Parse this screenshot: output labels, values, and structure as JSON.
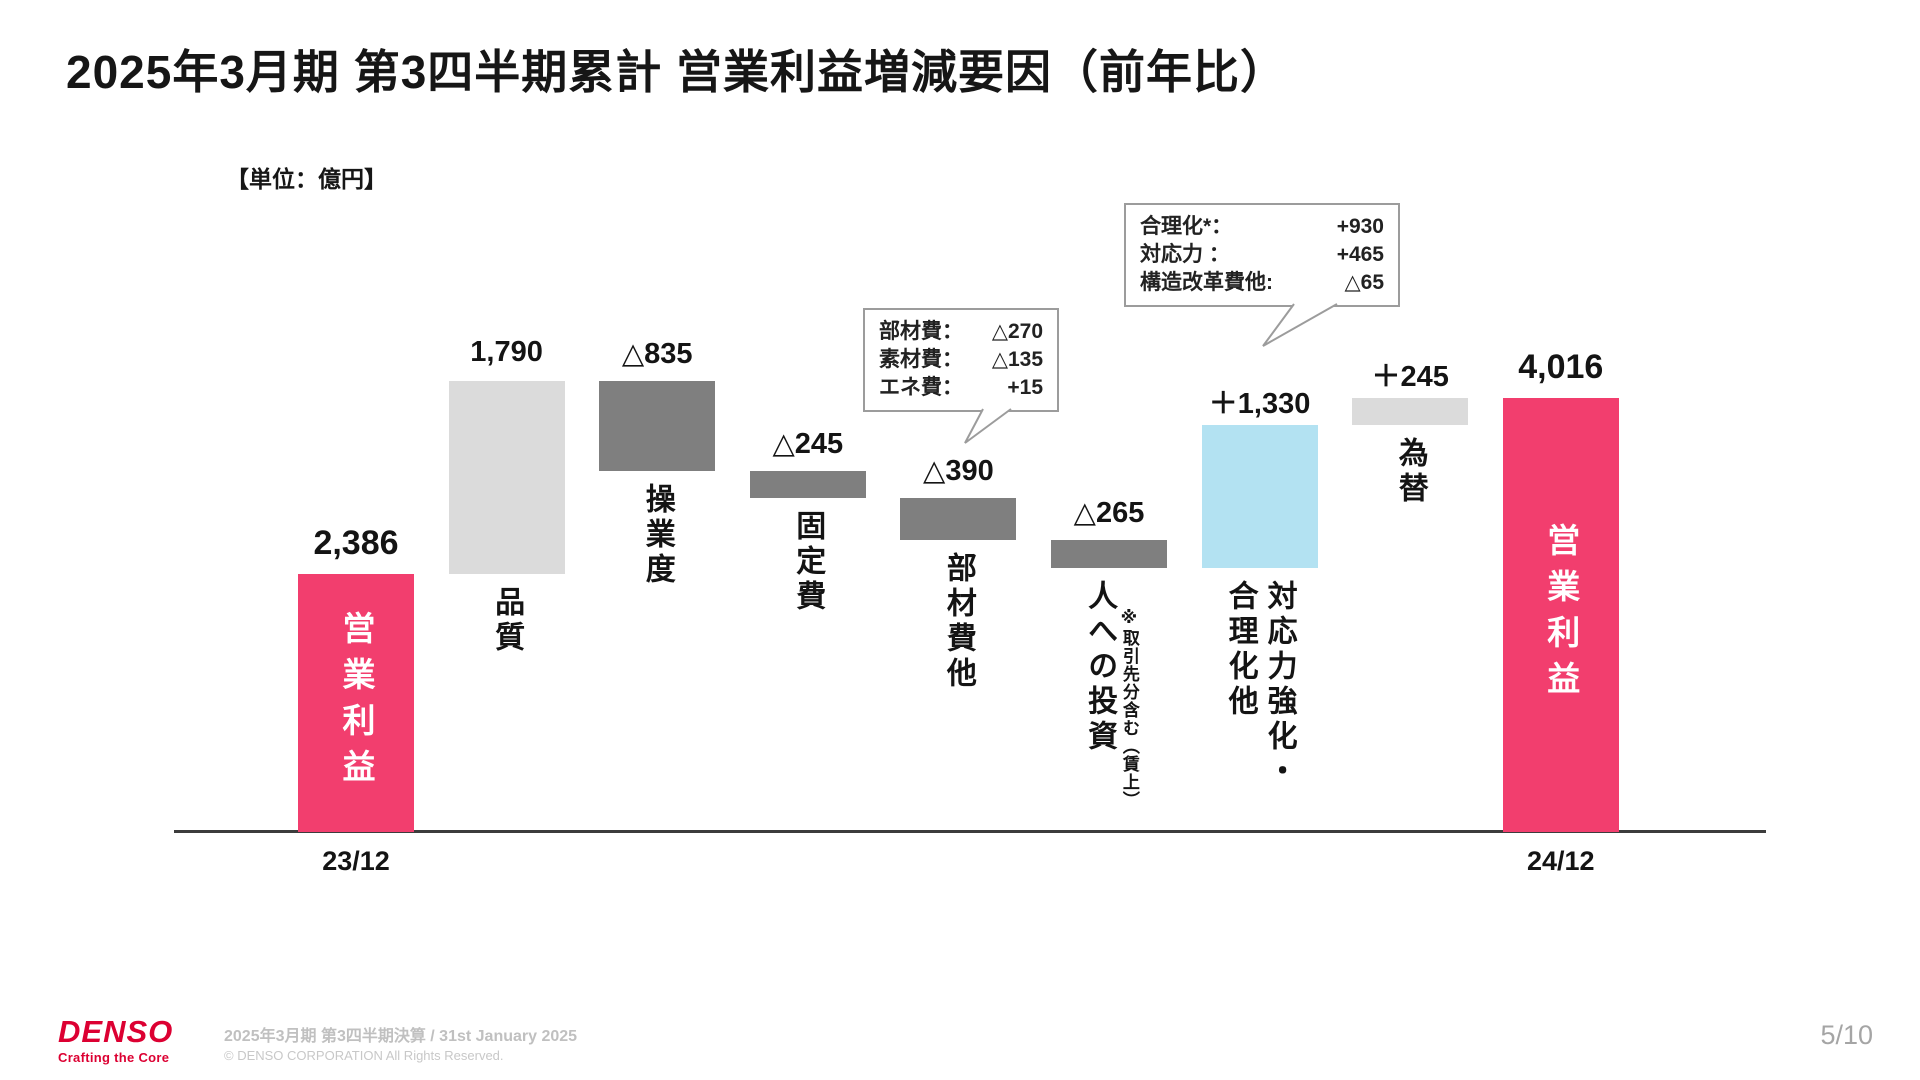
{
  "slide": {
    "title": "2025年3月期 第3四半期累計 営業利益増減要因（前年比）",
    "unit_label": "【単位：億円】"
  },
  "colors": {
    "accent_pink": "#F23E6E",
    "bar_light_gray": "#DBDBDB",
    "bar_dark_gray": "#7F7F7F",
    "bar_light_blue": "#B3E2F2",
    "axis": "#3C3C3C",
    "callout_border": "#9C9C9C"
  },
  "chart_data": {
    "type": "waterfall",
    "title": "営業利益増減要因（前年比）",
    "unit": "億円",
    "ylim": [
      0,
      4400
    ],
    "start_total": 2386,
    "end_total": 4016,
    "bars": [
      {
        "id": "operating-profit-start",
        "label_lines": [
          "営業利益"
        ],
        "value": 2386,
        "display": "2,386",
        "kind": "total",
        "color": "pink",
        "x_label": "23/12"
      },
      {
        "id": "quality",
        "label_lines": [
          "品質"
        ],
        "value": 1790,
        "display": "1,790",
        "kind": "delta",
        "color": "light_gray"
      },
      {
        "id": "utilization",
        "label_lines": [
          "操業度"
        ],
        "value": -835,
        "display": "△835",
        "kind": "delta",
        "color": "dark_gray"
      },
      {
        "id": "fixed-costs",
        "label_lines": [
          "固定費"
        ],
        "value": -245,
        "display": "△245",
        "kind": "delta",
        "color": "dark_gray"
      },
      {
        "id": "materials-cost",
        "label_lines": [
          "部材費他"
        ],
        "value": -390,
        "display": "△390",
        "kind": "delta",
        "color": "dark_gray"
      },
      {
        "id": "people-investment",
        "label_lines": [
          "人への投資"
        ],
        "note": "※取引先分含む（賃上）",
        "value": -265,
        "display": "△265",
        "kind": "delta",
        "color": "dark_gray"
      },
      {
        "id": "responsiveness-rationalization",
        "label_lines": [
          "対応力強化・",
          "合理化他"
        ],
        "value": 1330,
        "display": "＋1,330",
        "kind": "delta",
        "color": "light_blue"
      },
      {
        "id": "forex",
        "label_lines": [
          "為替"
        ],
        "value": 245,
        "display": "＋245",
        "kind": "delta",
        "color": "light_gray"
      },
      {
        "id": "operating-profit-end",
        "label_lines": [
          "営業利益"
        ],
        "value": 4016,
        "display": "4,016",
        "kind": "total",
        "color": "pink",
        "x_label": "24/12"
      }
    ],
    "callouts": [
      {
        "target": "部材費他",
        "rows": [
          {
            "label": "部材費：",
            "value": "△270"
          },
          {
            "label": "素材費：",
            "value": "△135"
          },
          {
            "label": "エネ費：",
            "value": "+15"
          }
        ]
      },
      {
        "target": "対応力強化・合理化他",
        "rows": [
          {
            "label": "合理化*：",
            "value": "+930"
          },
          {
            "label": "対応力 ：",
            "value": "+465"
          },
          {
            "label": "構造改革費他:",
            "value": "△65"
          }
        ]
      }
    ]
  },
  "footer": {
    "logo_text": "DENSO",
    "logo_tagline": "Crafting the Core",
    "caption_line1": "2025年3月期 第3四半期決算 / 31st January 2025",
    "caption_line2": "© DENSO CORPORATION All Rights Reserved.",
    "page": "5/10"
  }
}
